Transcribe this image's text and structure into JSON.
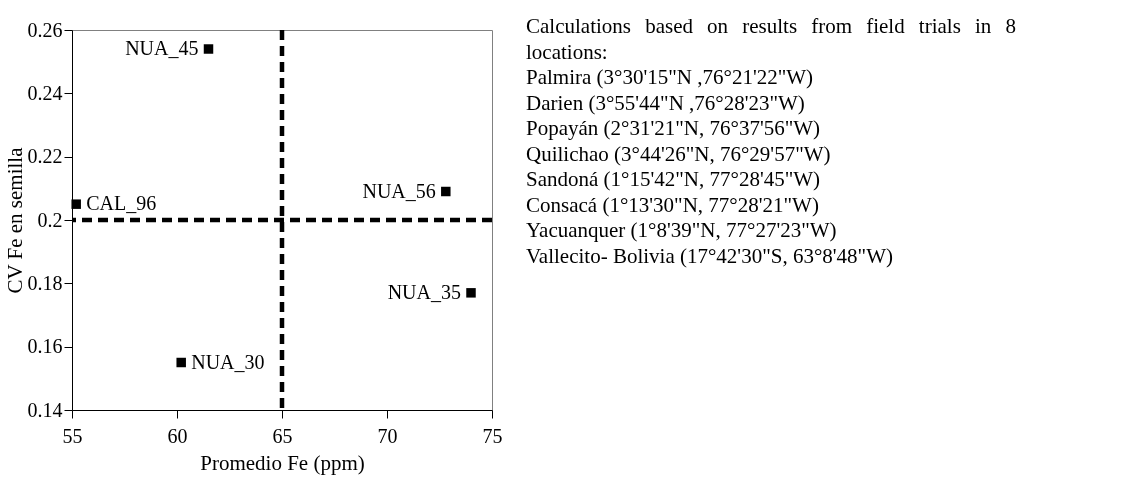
{
  "chart_data": {
    "type": "scatter",
    "xlabel": "Promedio Fe (ppm)",
    "ylabel": "CV Fe en semilla",
    "x": [
      61.5,
      55.2,
      72.8,
      74.0,
      60.2
    ],
    "series": [
      {
        "color": "#000000",
        "values": [
          0.254,
          0.205,
          0.209,
          0.177,
          0.155
        ]
      }
    ],
    "xlim": [
      55,
      75
    ],
    "xticks": [
      55,
      60,
      65,
      70,
      75
    ],
    "ylim": [
      0.14,
      0.26
    ],
    "yticks": [
      0.14,
      0.16,
      0.18,
      {
        "value": 0.2,
        "label": "0.2"
      },
      0.22,
      0.24,
      0.26
    ],
    "marker": "square",
    "grid": false,
    "ref_lines": [
      {
        "axis": "x",
        "value": 65,
        "color": "#000000",
        "line_style": "dashed"
      },
      {
        "axis": "y",
        "value": 0.2,
        "color": "#000000",
        "line_style": "dashed"
      }
    ],
    "annotations": [
      {
        "text": "NUA_45",
        "x": 61.5,
        "y": 0.254
      },
      {
        "text": "CAL_96",
        "x": 55.2,
        "y": 0.205
      },
      {
        "text": "NUA_56",
        "x": 72.8,
        "y": 0.209
      },
      {
        "text": "NUA_35",
        "x": 74.0,
        "y": 0.177
      },
      {
        "text": "NUA_30",
        "x": 60.2,
        "y": 0.155
      },
      "Calculations based on results from field trials in 8 locations:",
      "Palmira (3°30'15\"N ,76°21'22\"W)",
      "Darien (3°55'44\"N ,76°28'23\"W)",
      "Popayán (2°31'21\"N, 76°37'56\"W)",
      "Quilichao (3°44'26\"N, 76°29'57\"W)",
      "Sandoná (1°15'42\"N, 77°28'45\"W)",
      "Consacá (1°13'30\"N, 77°28'21\"W)",
      "Yacuanquer (1°8'39\"N, 77°27'23\"W)",
      "Vallecito- Bolivia (17°42'30\"S, 63°8'48\"W)"
    ]
  }
}
